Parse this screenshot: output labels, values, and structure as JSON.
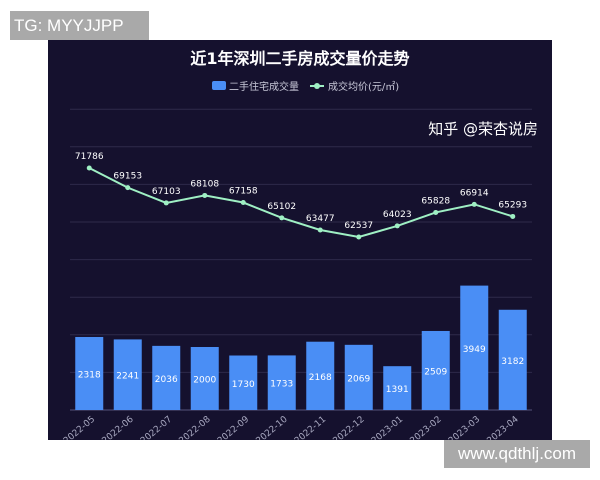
{
  "watermark_top": "TG: MYYJJPP",
  "watermark_bottom": "www.qdthlj.com",
  "source_watermark": "知乎 @荣杏说房",
  "colors": {
    "bar": "#4a8ef5",
    "line": "#9ff0c4",
    "background": "#15112e",
    "grid": "#2e2a4a"
  },
  "chart_data": {
    "type": "bar",
    "title": "近1年深圳二手房成交量价走势",
    "legend": [
      "二手住宅成交量",
      "成交均价(元/㎡)"
    ],
    "legend_position": "top-center",
    "categories": [
      "2022-05",
      "2022-06",
      "2022-07",
      "2022-08",
      "2022-09",
      "2022-10",
      "2022-11",
      "2022-12",
      "2023-01",
      "2023-02",
      "2023-03",
      "2023-04"
    ],
    "series": [
      {
        "name": "二手住宅成交量",
        "type": "bar",
        "values": [
          2318,
          2241,
          2036,
          2000,
          1730,
          1733,
          2168,
          2069,
          1391,
          2509,
          3949,
          3182
        ]
      },
      {
        "name": "成交均价(元/㎡)",
        "type": "line",
        "values": [
          71786,
          69153,
          67103,
          68108,
          67158,
          65102,
          63477,
          62537,
          64023,
          65828,
          66914,
          65293
        ]
      }
    ],
    "grid": true
  }
}
